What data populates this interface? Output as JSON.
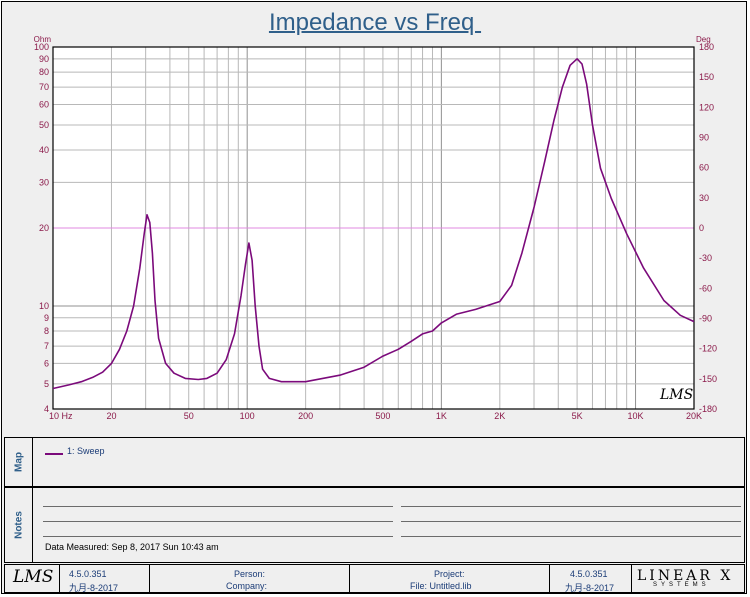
{
  "title": "Impedance vs Freq ",
  "watermark": "LMS",
  "chart_data": {
    "type": "line",
    "title": "Impedance vs Freq",
    "x_scale": "log",
    "xlim": [
      10,
      20000
    ],
    "ylim_left": [
      4,
      100
    ],
    "y_scale_left": "log",
    "ylim_right": [
      -180,
      180
    ],
    "left_unit": "Ohm",
    "right_unit": "Deg",
    "x_ticks": [
      {
        "v": 10,
        "label": "10  Hz"
      },
      {
        "v": 20,
        "label": "20"
      },
      {
        "v": 50,
        "label": "50"
      },
      {
        "v": 100,
        "label": "100"
      },
      {
        "v": 200,
        "label": "200"
      },
      {
        "v": 500,
        "label": "500"
      },
      {
        "v": 1000,
        "label": "1K"
      },
      {
        "v": 2000,
        "label": "2K"
      },
      {
        "v": 5000,
        "label": "5K"
      },
      {
        "v": 10000,
        "label": "10K"
      },
      {
        "v": 20000,
        "label": "20K"
      }
    ],
    "y_ticks_left": [
      {
        "v": 100,
        "label": "100"
      },
      {
        "v": 90,
        "label": "90"
      },
      {
        "v": 80,
        "label": "80"
      },
      {
        "v": 70,
        "label": "70"
      },
      {
        "v": 60,
        "label": "60"
      },
      {
        "v": 50,
        "label": "50"
      },
      {
        "v": 40,
        "label": "40"
      },
      {
        "v": 30,
        "label": "30"
      },
      {
        "v": 20,
        "label": "20"
      },
      {
        "v": 10,
        "label": "10"
      },
      {
        "v": 9,
        "label": "9"
      },
      {
        "v": 8,
        "label": "8"
      },
      {
        "v": 7,
        "label": "7"
      },
      {
        "v": 6,
        "label": "6"
      },
      {
        "v": 5,
        "label": "5"
      },
      {
        "v": 4,
        "label": "4"
      }
    ],
    "y_ticks_right": [
      "180",
      "150",
      "120",
      "90",
      "60",
      "30",
      "0",
      "-30",
      "-60",
      "-90",
      "-120",
      "-150",
      "-180"
    ],
    "reference_line_deg": 0,
    "grid": true,
    "series": [
      {
        "name": "1: Sweep",
        "color": "#7b0a7b",
        "x": [
          10,
          12,
          14,
          16,
          18,
          20,
          22,
          24,
          26,
          28,
          29.5,
          30.5,
          31.5,
          32.5,
          33.5,
          35,
          38,
          42,
          48,
          56,
          62,
          70,
          78,
          86,
          93,
          98,
          102,
          106,
          110,
          115,
          120,
          130,
          150,
          200,
          300,
          400,
          500,
          600,
          700,
          800,
          900,
          1000,
          1200,
          1500,
          2000,
          2300,
          2600,
          3000,
          3400,
          3800,
          4200,
          4600,
          5000,
          5300,
          5600,
          6000,
          6600,
          7500,
          9000,
          11000,
          14000,
          17000,
          20000
        ],
        "y": [
          4.8,
          4.95,
          5.1,
          5.3,
          5.55,
          6.0,
          6.8,
          8.0,
          10.0,
          14.0,
          19.0,
          22.5,
          21.0,
          16.0,
          10.5,
          7.5,
          6.0,
          5.5,
          5.25,
          5.2,
          5.25,
          5.5,
          6.2,
          7.8,
          11.0,
          14.5,
          17.5,
          15.0,
          10.0,
          7.0,
          5.7,
          5.25,
          5.1,
          5.1,
          5.4,
          5.8,
          6.4,
          6.8,
          7.3,
          7.8,
          8.0,
          8.6,
          9.3,
          9.7,
          10.4,
          12.0,
          16.0,
          24.0,
          36.0,
          52.0,
          70.0,
          85.0,
          90.0,
          86.0,
          72.0,
          50.0,
          34.0,
          26.0,
          19.0,
          14.0,
          10.5,
          9.2,
          8.7
        ]
      }
    ]
  },
  "map_label": "Map",
  "legend_text": "1: Sweep",
  "notes_label": "Notes",
  "data_measured": "Data Measured: Sep 8, 2017 Sun 10:43 am",
  "footer": {
    "logo": "LMS",
    "version_left": "4.5.0.351",
    "date_left": "九月-8-2017",
    "person_label": "Person:",
    "company_label": "Company:",
    "project_label": "Project:",
    "file_label": "File: Untitled.lib",
    "version_right": "4.5.0.351",
    "date_right": "九月-8-2017",
    "brand": "LINEAR X",
    "brand_sub": "SYSTEMS"
  },
  "colors": {
    "curve": "#7b0a7b",
    "axis_labels": "#8b1a4a",
    "title": "#2f5f8a",
    "reference": "#e08ae0"
  }
}
